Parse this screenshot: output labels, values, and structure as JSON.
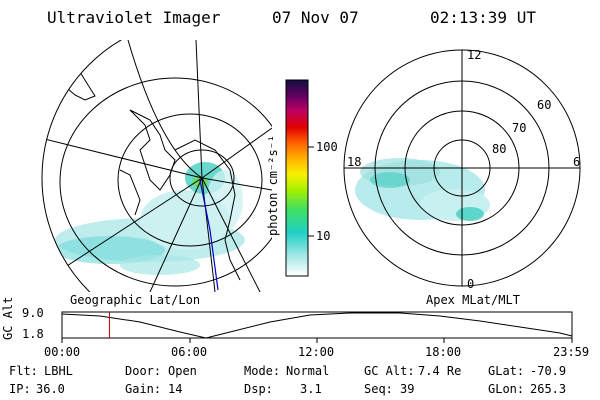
{
  "header": {
    "instrument": "Ultraviolet Imager",
    "date": "07 Nov 07",
    "time": "02:13:39 UT"
  },
  "colorbar": {
    "label": "photon cm⁻²s⁻¹",
    "ticks": [
      "100",
      "10"
    ]
  },
  "polar_plot": {
    "latitude_labels": [
      "60",
      "70",
      "80"
    ],
    "mlt_labels": [
      "12",
      "18",
      "6",
      "0"
    ],
    "caption": "Apex MLat/MLT"
  },
  "geo_plot": {
    "caption": "Geographic Lat/Lon"
  },
  "altitude_plot": {
    "ylabel": "GC Alt",
    "y_ticks": [
      "9.0",
      "1.8"
    ],
    "x_ticks": [
      "00:00",
      "06:00",
      "12:00",
      "18:00",
      "23:59"
    ],
    "current_time_fraction": 0.093
  },
  "info": {
    "flt_label": "Flt:",
    "flt_value": "LBHL",
    "ip_label": "IP:",
    "ip_value": "36.0",
    "door_label": "Door:",
    "door_value": "Open",
    "gain_label": "Gain:",
    "gain_value": "14",
    "mode_label": "Mode:",
    "mode_value": "Normal",
    "dsp_label": "Dsp:",
    "dsp_value": "3.1",
    "gcalt_label": "GC Alt:",
    "gcalt_value": "7.4 Re",
    "seq_label": "Seq:",
    "seq_value": "39",
    "glat_label": "GLat:",
    "glat_value": "-70.9",
    "glon_label": "GLon:",
    "glon_value": "265.3"
  }
}
